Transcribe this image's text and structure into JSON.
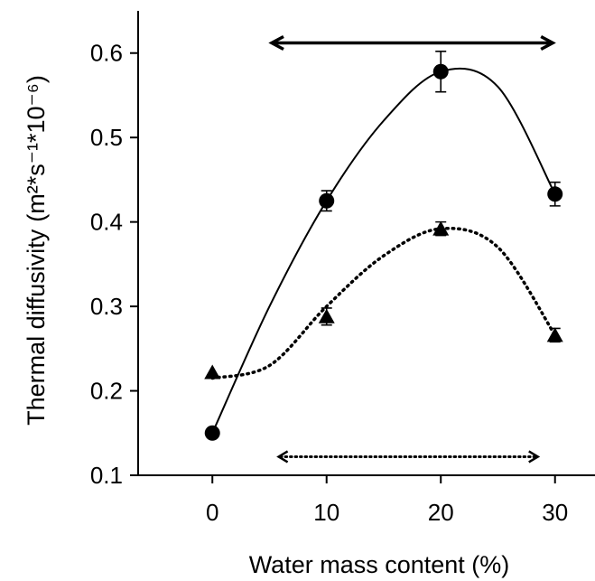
{
  "chart_data": {
    "type": "scatter",
    "xlabel": "Water mass content (%)",
    "ylabel": "Thermal diffusivity",
    "ylabel_unit": "(m²*s⁻¹*10⁻⁶)",
    "x_ticks": [
      "0",
      "10",
      "20",
      "30"
    ],
    "y_ticks": [
      "0.1",
      "0.2",
      "0.3",
      "0.4",
      "0.5",
      "0.6"
    ],
    "xlim": [
      -6.5,
      33.5
    ],
    "ylim": [
      0.1,
      0.65
    ],
    "grid": false,
    "series": [
      {
        "marker": "circle",
        "line": "solid",
        "x": [
          0,
          10,
          20,
          30
        ],
        "y": [
          0.15,
          0.425,
          0.578,
          0.433
        ],
        "err": [
          0.0,
          0.012,
          0.024,
          0.014
        ],
        "fit": [
          [
            0,
            0.15
          ],
          [
            5,
            0.3
          ],
          [
            10,
            0.425
          ],
          [
            15,
            0.52
          ],
          [
            20,
            0.578
          ],
          [
            25,
            0.56
          ],
          [
            30,
            0.433
          ]
        ]
      },
      {
        "marker": "triangle",
        "line": "dotted",
        "x": [
          0,
          10,
          20,
          30
        ],
        "y": [
          0.222,
          0.288,
          0.392,
          0.266
        ],
        "err": [
          0.0,
          0.01,
          0.008,
          0.008
        ],
        "fit": [
          [
            0,
            0.215
          ],
          [
            5,
            0.23
          ],
          [
            10,
            0.3
          ],
          [
            15,
            0.36
          ],
          [
            20,
            0.392
          ],
          [
            25,
            0.37
          ],
          [
            30,
            0.266
          ]
        ]
      }
    ],
    "annotations": [
      {
        "type": "double-arrow",
        "style": "solid",
        "from_x": 5.2,
        "to_x": 29.8,
        "y": 0.612
      },
      {
        "type": "double-arrow",
        "style": "dotted",
        "from_x": 5.8,
        "to_x": 28.5,
        "y": 0.122
      }
    ]
  }
}
